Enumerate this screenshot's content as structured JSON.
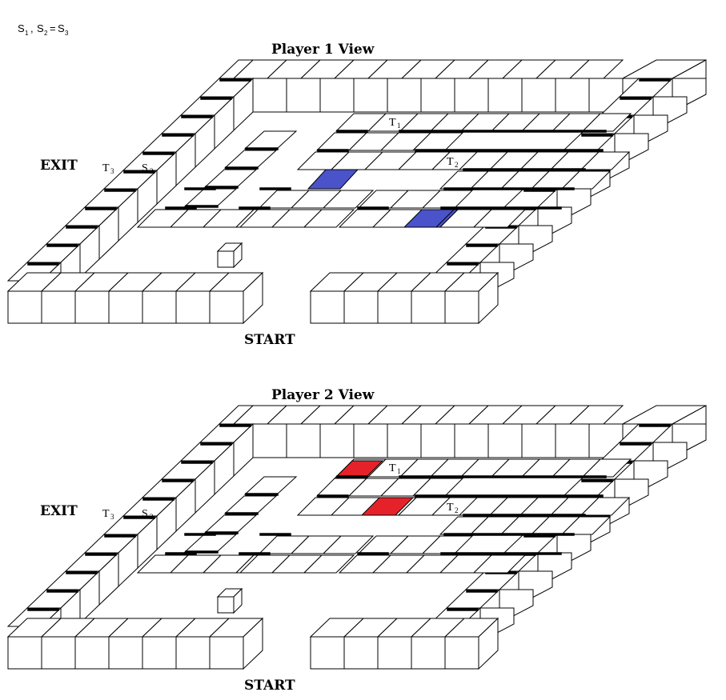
{
  "formula": {
    "s1": "S",
    "s1_sub": "1",
    "sep": ",",
    "s2": "S",
    "s2_sub": "2",
    "eq": "=",
    "s3": "S",
    "s3_sub": "3"
  },
  "views": [
    {
      "title": "Player 1 View",
      "exit_label": "EXIT",
      "start_label": "START",
      "t1": "T",
      "t1_sub": "1",
      "t2": "T",
      "t2_sub": "2",
      "t3": "T",
      "t3_sub": "3",
      "s3": "S",
      "s3_sub": "3",
      "highlight_color": "#4a53c9",
      "highlights": [
        "upper-center-tile",
        "lower-right-tile"
      ]
    },
    {
      "title": "Player 2 View",
      "exit_label": "EXIT",
      "start_label": "START",
      "t1": "T",
      "t1_sub": "1",
      "t2": "T",
      "t2_sub": "2",
      "t3": "T",
      "t3_sub": "3",
      "s3": "S",
      "s3_sub": "3",
      "highlight_color": "#e52229",
      "highlights": [
        "t1-tile",
        "t2-tile"
      ]
    }
  ]
}
